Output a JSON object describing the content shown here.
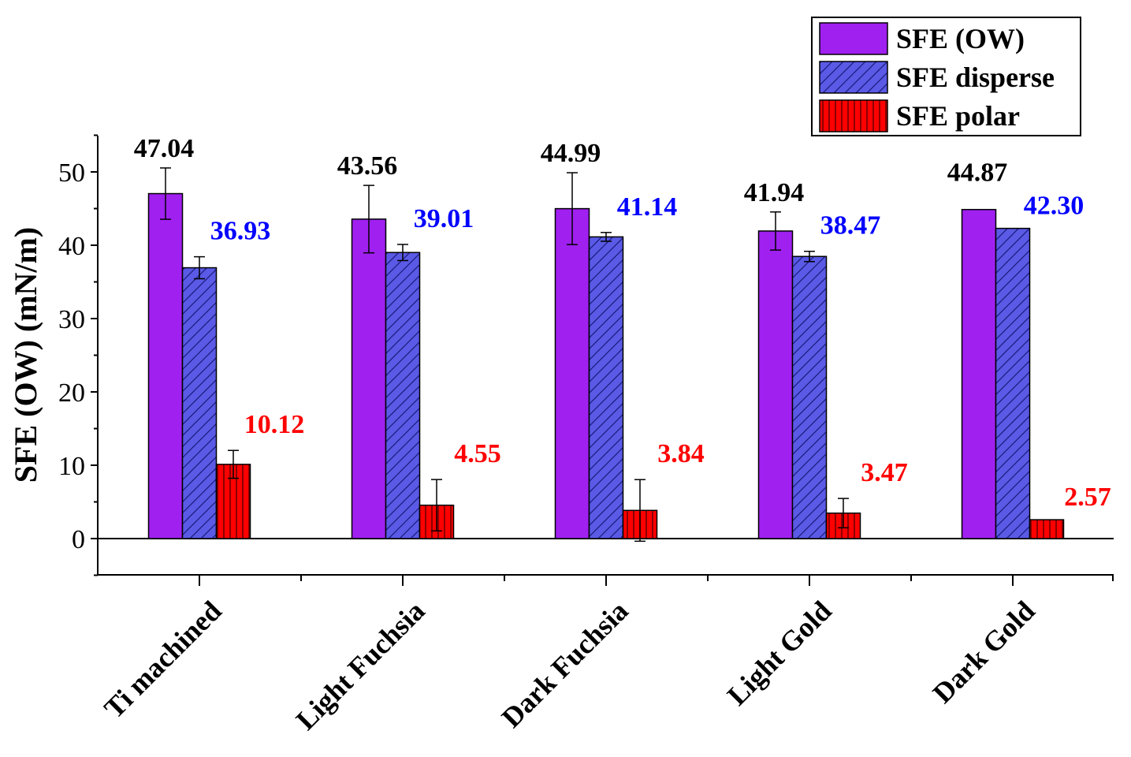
{
  "chart_data": {
    "type": "bar",
    "title": "",
    "xlabel": "",
    "ylabel": "SFE (OW) (mN/m)",
    "ylim": [
      -5,
      55
    ],
    "yticks": [
      0,
      10,
      20,
      30,
      40,
      50
    ],
    "grid": false,
    "legend_position": "top-right",
    "categories": [
      "Ti machined",
      "Light Fuchsia",
      "Dark Fuchsia",
      "Light Gold",
      "Dark Gold"
    ],
    "series": [
      {
        "name": "SFE (OW)",
        "color": "#a020f0",
        "label_color": "#000000",
        "pattern": "solid",
        "values": [
          47.04,
          43.56,
          44.99,
          41.94,
          44.87
        ],
        "labels": [
          "47.04",
          "43.56",
          "44.99",
          "41.94",
          "44.87"
        ],
        "errors": [
          3.5,
          4.6,
          4.9,
          2.6,
          0
        ]
      },
      {
        "name": "SFE disperse",
        "color": "#5a5ae6",
        "label_color": "#0000ff",
        "pattern": "diagonal",
        "values": [
          36.93,
          39.01,
          41.14,
          38.47,
          42.3
        ],
        "labels": [
          "36.93",
          "39.01",
          "41.14",
          "38.47",
          "42.30"
        ],
        "errors": [
          1.5,
          1.1,
          0.6,
          0.7,
          0
        ]
      },
      {
        "name": "SFE polar",
        "color": "#ff0000",
        "label_color": "#ff0000",
        "pattern": "vertical",
        "values": [
          10.12,
          4.55,
          3.84,
          3.47,
          2.57
        ],
        "labels": [
          "10.12",
          "4.55",
          "3.84",
          "3.47",
          "2.57"
        ],
        "errors": [
          1.9,
          3.5,
          4.2,
          2.0,
          0
        ]
      }
    ]
  }
}
